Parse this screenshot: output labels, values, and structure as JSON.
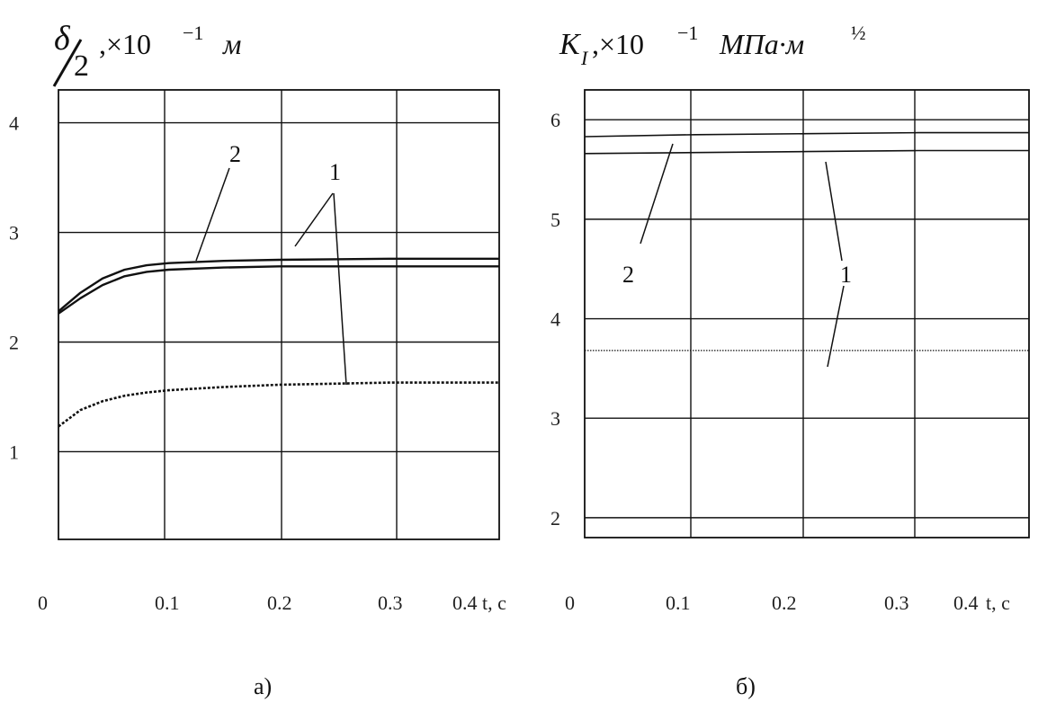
{
  "chart_data": [
    {
      "type": "line",
      "title": "δ/2, ×10⁻¹ м",
      "title_parts": {
        "delta": "δ",
        "two": "2",
        "rest": ",×10",
        "exp": "−1",
        "unit": "м"
      },
      "panel_label": "а)",
      "xlabel": "t, c",
      "x_ticks": [
        "0",
        "0.1",
        "0.2",
        "0.3",
        "0.4"
      ],
      "y_ticks": [
        "1",
        "2",
        "3",
        "4"
      ],
      "xlim": [
        0,
        0.4
      ],
      "ylim": [
        0.2,
        4.3
      ],
      "grid": true,
      "series": [
        {
          "name": "2",
          "style": "solid",
          "x": [
            0,
            0.02,
            0.04,
            0.06,
            0.08,
            0.1,
            0.15,
            0.2,
            0.3,
            0.4
          ],
          "y": [
            2.28,
            2.45,
            2.58,
            2.66,
            2.7,
            2.72,
            2.74,
            2.75,
            2.76,
            2.76
          ]
        },
        {
          "name": "1",
          "style": "solid",
          "x": [
            0,
            0.02,
            0.04,
            0.06,
            0.08,
            0.1,
            0.15,
            0.2,
            0.3,
            0.4
          ],
          "y": [
            2.26,
            2.4,
            2.52,
            2.6,
            2.64,
            2.66,
            2.68,
            2.69,
            2.69,
            2.69
          ]
        },
        {
          "name": "1",
          "style": "dotted",
          "x": [
            0,
            0.02,
            0.04,
            0.06,
            0.08,
            0.1,
            0.15,
            0.2,
            0.3,
            0.4
          ],
          "y": [
            1.23,
            1.38,
            1.46,
            1.51,
            1.54,
            1.56,
            1.59,
            1.61,
            1.63,
            1.63
          ]
        }
      ],
      "curve_labels": [
        "2",
        "1"
      ]
    },
    {
      "type": "line",
      "title": "K_I, ×10⁻¹ МПа·м^½",
      "title_parts": {
        "k": "K",
        "sub": "I",
        "rest": ",×10",
        "exp": "−1",
        "unit": "МПа·м",
        "unit_exp": "½"
      },
      "panel_label": "б)",
      "xlabel": "t, c",
      "x_ticks": [
        "0",
        "0.1",
        "0.2",
        "0.3",
        "0.4"
      ],
      "y_ticks": [
        "2",
        "3",
        "4",
        "5",
        "6"
      ],
      "xlim": [
        0,
        0.4
      ],
      "ylim": [
        1.8,
        6.3
      ],
      "grid": true,
      "series": [
        {
          "name": "2",
          "style": "solid",
          "x": [
            0,
            0.1,
            0.2,
            0.3,
            0.4
          ],
          "y": [
            5.83,
            5.85,
            5.86,
            5.87,
            5.87
          ]
        },
        {
          "name": "1",
          "style": "solid",
          "x": [
            0,
            0.1,
            0.2,
            0.3,
            0.4
          ],
          "y": [
            5.66,
            5.67,
            5.68,
            5.69,
            5.69
          ]
        },
        {
          "name": "1",
          "style": "dotted",
          "x": [
            0,
            0.1,
            0.2,
            0.3,
            0.4
          ],
          "y": [
            3.68,
            3.68,
            3.68,
            3.68,
            3.68
          ]
        }
      ],
      "curve_labels": [
        "2",
        "1"
      ]
    }
  ]
}
